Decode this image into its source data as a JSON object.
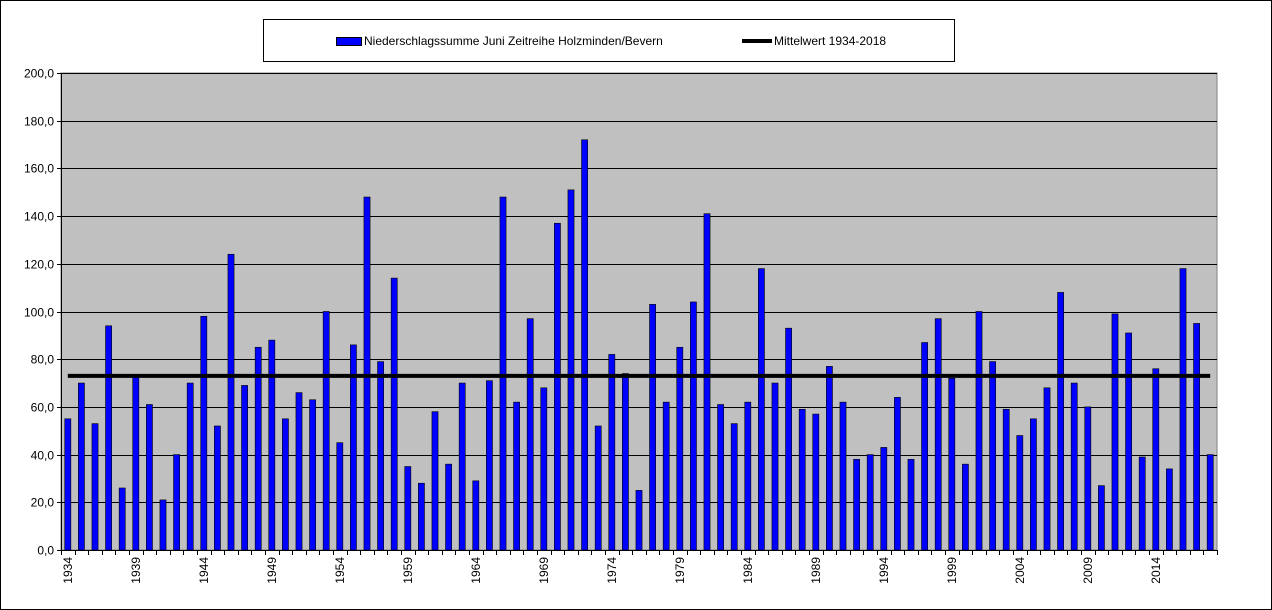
{
  "legend": {
    "series_label": "Niederschlagssumme Juni Zeitreihe Holzminden/Bevern",
    "mean_label": "Mittelwert 1934-2018"
  },
  "colors": {
    "bar": "#0000ff",
    "plot_bg": "#c0c0c0",
    "mean_line": "#000000"
  },
  "chart_data": {
    "type": "bar",
    "title": "",
    "xlabel": "",
    "ylabel": "",
    "ylim": [
      0,
      200
    ],
    "y_ticks": [
      "0,0",
      "20,0",
      "40,0",
      "60,0",
      "80,0",
      "100,0",
      "120,0",
      "140,0",
      "160,0",
      "180,0",
      "200,0"
    ],
    "x_tick_labels": [
      "1934",
      "1939",
      "1944",
      "1949",
      "1954",
      "1959",
      "1964",
      "1969",
      "1974",
      "1979",
      "1984",
      "1989",
      "1994",
      "1999",
      "2004",
      "2009",
      "2014"
    ],
    "grid": true,
    "legend_position": "top",
    "categories": [
      1934,
      1935,
      1936,
      1937,
      1938,
      1939,
      1940,
      1941,
      1942,
      1943,
      1944,
      1945,
      1946,
      1947,
      1948,
      1949,
      1950,
      1951,
      1952,
      1953,
      1954,
      1955,
      1956,
      1957,
      1958,
      1959,
      1960,
      1961,
      1962,
      1963,
      1964,
      1965,
      1966,
      1967,
      1968,
      1969,
      1970,
      1971,
      1972,
      1973,
      1974,
      1975,
      1976,
      1977,
      1978,
      1979,
      1980,
      1981,
      1982,
      1983,
      1984,
      1985,
      1986,
      1987,
      1988,
      1989,
      1990,
      1991,
      1992,
      1993,
      1994,
      1995,
      1996,
      1997,
      1998,
      1999,
      2000,
      2001,
      2002,
      2003,
      2004,
      2005,
      2006,
      2007,
      2008,
      2009,
      2010,
      2011,
      2012,
      2013,
      2014,
      2015,
      2016,
      2017,
      2018
    ],
    "series": [
      {
        "name": "Niederschlagssumme Juni Zeitreihe Holzminden/Bevern",
        "values": [
          55,
          70,
          53,
          94,
          26,
          73,
          61,
          21,
          40,
          70,
          98,
          52,
          124,
          69,
          85,
          88,
          55,
          66,
          63,
          100,
          45,
          86,
          148,
          79,
          114,
          35,
          28,
          58,
          36,
          70,
          29,
          71,
          148,
          62,
          97,
          68,
          137,
          151,
          172,
          52,
          82,
          74,
          25,
          103,
          62,
          85,
          104,
          141,
          61,
          53,
          62,
          118,
          70,
          93,
          59,
          57,
          77,
          62,
          38,
          40,
          43,
          64,
          38,
          87,
          97,
          72,
          36,
          100,
          79,
          59,
          48,
          55,
          68,
          108,
          70,
          60,
          27,
          99,
          91,
          39,
          76,
          34,
          118,
          95,
          40
        ]
      }
    ],
    "mean": {
      "name": "Mittelwert 1934-2018",
      "value": 73
    }
  }
}
